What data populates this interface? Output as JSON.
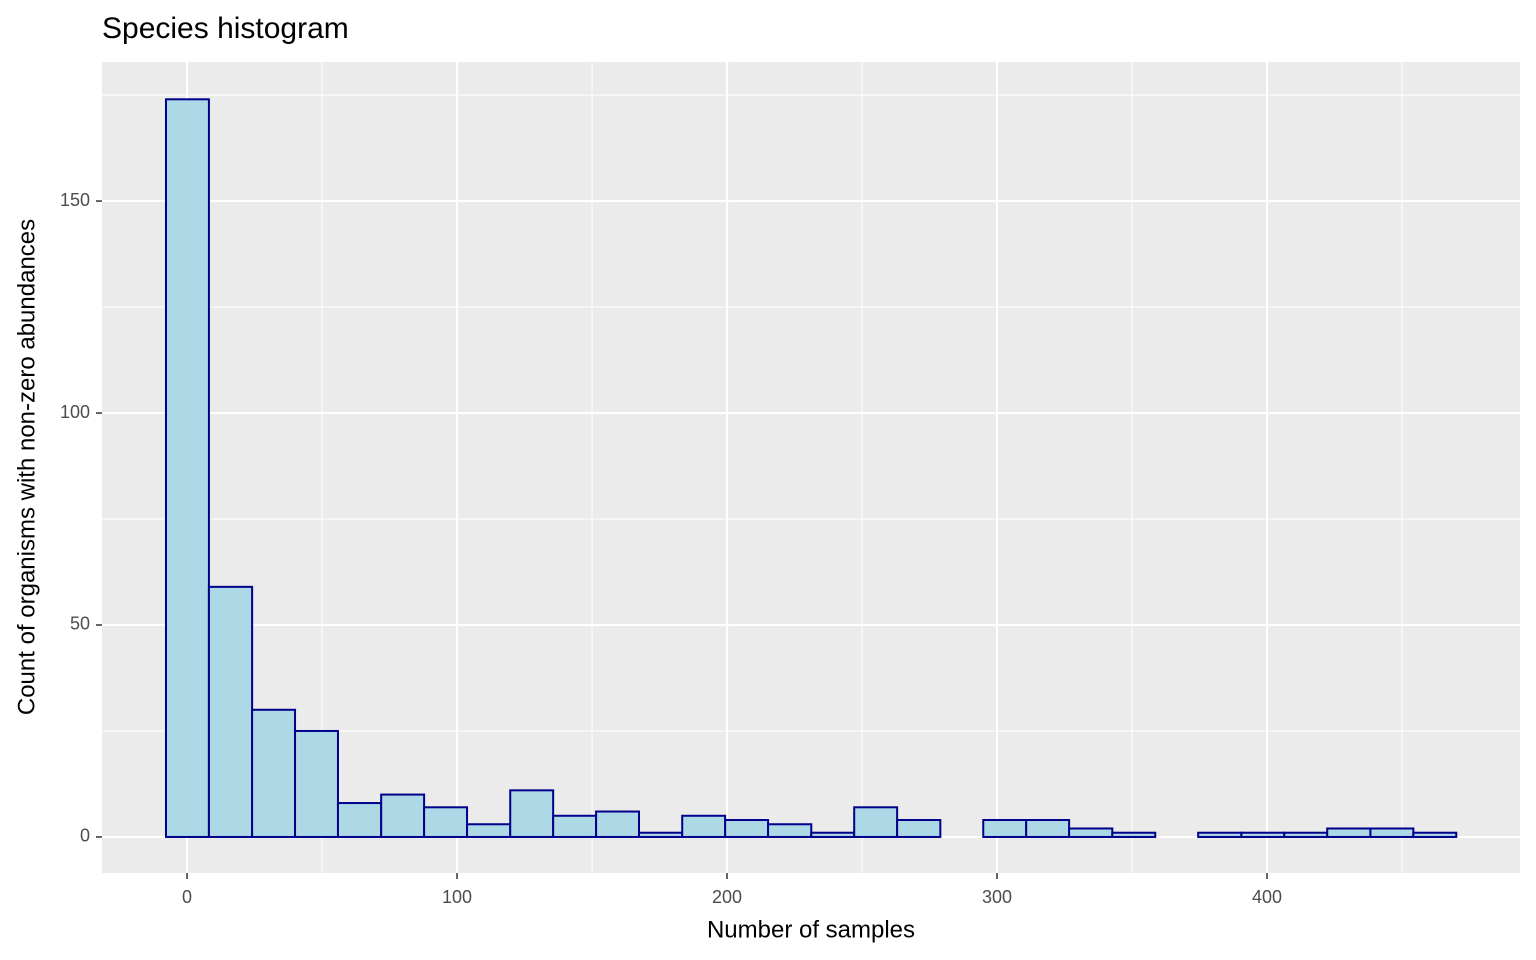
{
  "chart_data": {
    "type": "histogram",
    "title": "Species histogram",
    "x_label": "Number of samples",
    "y_label": "Count of organisms with non-zero abundances",
    "bins": [
      -7.8,
      8.1,
      24.1,
      40.0,
      55.9,
      71.9,
      87.8,
      103.7,
      119.7,
      135.6,
      151.5,
      167.4,
      183.4,
      199.3,
      215.2,
      231.2,
      247.1,
      263.0,
      279.0,
      294.9,
      310.8,
      326.7,
      342.7,
      358.6,
      374.5,
      390.5,
      406.4,
      422.3,
      438.3,
      454.2,
      470.1
    ],
    "values": [
      174,
      59,
      30,
      25,
      8,
      10,
      7,
      3,
      11,
      5,
      6,
      1,
      5,
      4,
      3,
      1,
      7,
      4,
      0,
      4,
      4,
      2,
      1,
      0,
      1,
      1,
      1,
      2,
      2,
      1
    ],
    "color": "#add8e6",
    "edge_color": "#00008b",
    "xlim": [
      -31.5,
      493.7
    ],
    "xticks": [
      0,
      100,
      200,
      300,
      400
    ],
    "ylim": [
      -8.5,
      182.8
    ],
    "yticks": [
      0,
      50,
      100,
      150
    ],
    "grid": true
  }
}
